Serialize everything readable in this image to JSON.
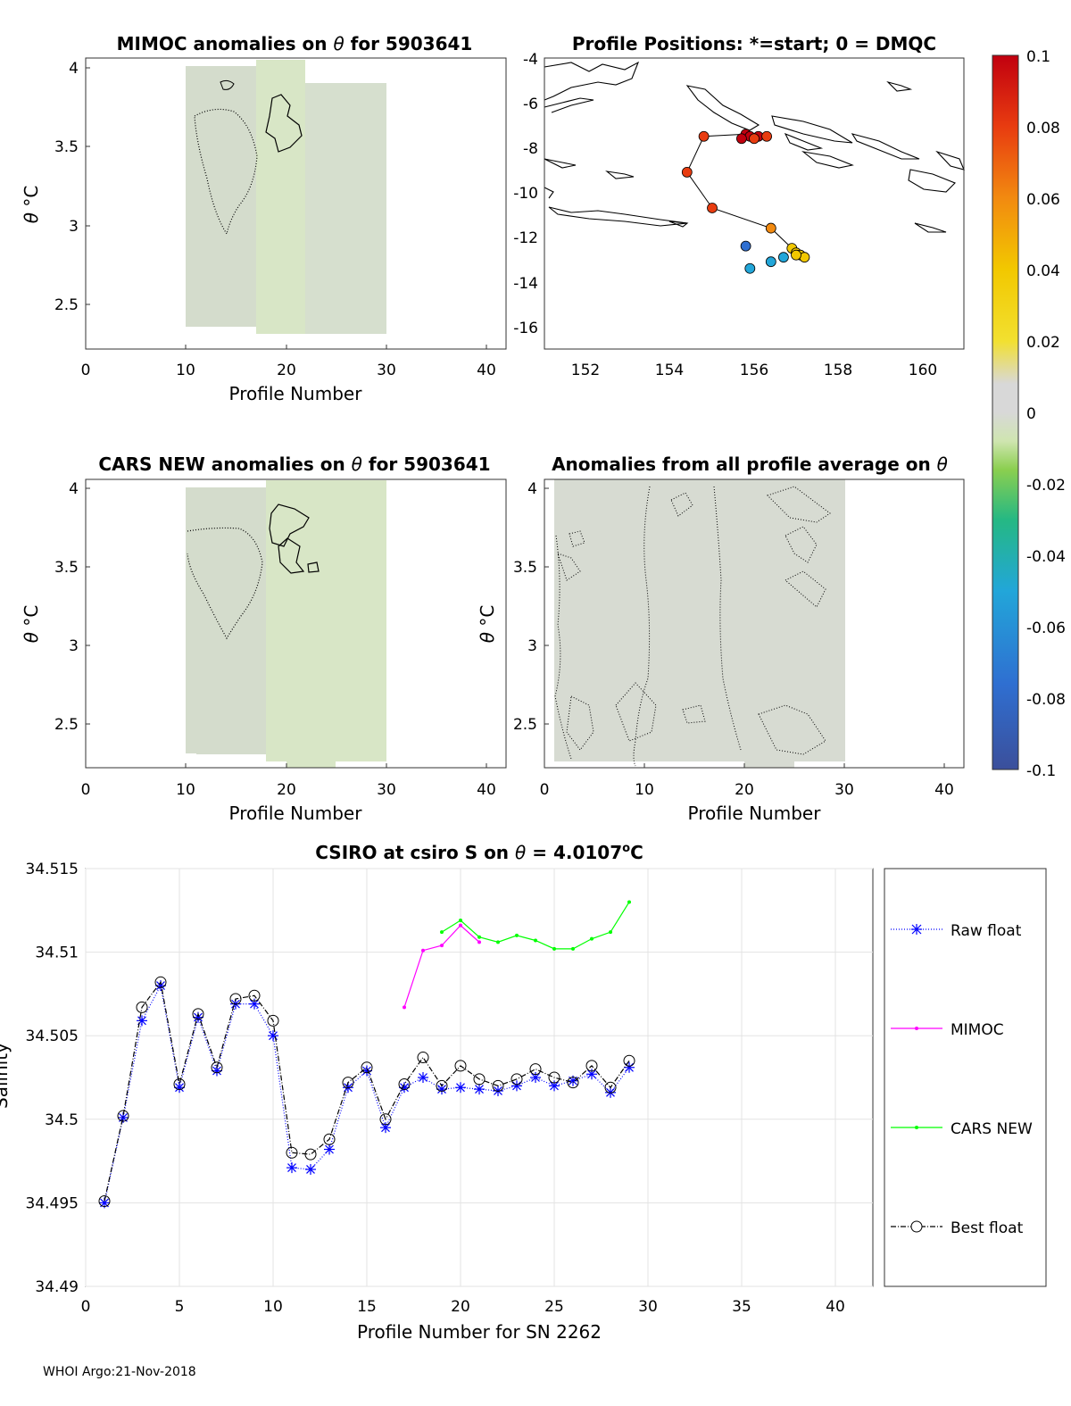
{
  "footer": "WHOI Argo:21-Nov-2018",
  "theta": "θ",
  "panels": {
    "mimoc": {
      "title_pre": "MIMOC anomalies on",
      "title_post": " for 5903641",
      "ylabel": "°C",
      "xlabel": "Profile Number",
      "xticks": [
        "0",
        "10",
        "20",
        "30",
        "40"
      ],
      "yticks": [
        "4",
        "3.5",
        "3",
        "2.5"
      ]
    },
    "positions": {
      "title": "Profile Positions: *=start; 0 = DMQC",
      "xticks": [
        "152",
        "154",
        "156",
        "158",
        "160"
      ],
      "yticks": [
        "-4",
        "-6",
        "-8",
        "-10",
        "-12",
        "-14",
        "-16"
      ]
    },
    "cars": {
      "title_pre": "CARS NEW anomalies on",
      "title_post": " for 5903641",
      "ylabel": "°C",
      "xlabel": "Profile Number",
      "xticks": [
        "0",
        "10",
        "20",
        "30",
        "40"
      ],
      "yticks": [
        "4",
        "3.5",
        "3",
        "2.5"
      ]
    },
    "allavg": {
      "title_pre": "Anomalies from all profile average on",
      "ylabel": "°C",
      "xlabel": "Profile Number",
      "xticks": [
        "0",
        "10",
        "20",
        "30",
        "40"
      ],
      "yticks": [
        "4",
        "3.5",
        "3",
        "2.5"
      ]
    }
  },
  "colorbar": {
    "ticks": [
      "0.1",
      "0.08",
      "0.06",
      "0.04",
      "0.02",
      "0",
      "-0.02",
      "-0.04",
      "-0.06",
      "-0.08",
      "-0.1"
    ]
  },
  "chart_data": [
    {
      "type": "line",
      "title_pre": "CSIRO at csiro S on",
      "title_post": " = 4.0107",
      "title_sup": "o",
      "title_unit": "C",
      "xlabel": "Profile Number for SN 2262",
      "ylabel": "Salinity",
      "xlim": [
        0,
        42
      ],
      "ylim": [
        34.49,
        34.515
      ],
      "xticks": [
        "0",
        "5",
        "10",
        "15",
        "20",
        "25",
        "30",
        "35",
        "40"
      ],
      "yticks": [
        "34.515",
        "34.51",
        "34.505",
        "34.5",
        "34.495",
        "34.49"
      ],
      "series": [
        {
          "name": "Raw float",
          "color": "#0000ff",
          "x": [
            1,
            2,
            3,
            4,
            5,
            6,
            7,
            8,
            9,
            10,
            11,
            12,
            13,
            14,
            15,
            16,
            17,
            18,
            19,
            20,
            21,
            22,
            23,
            24,
            25,
            26,
            27,
            28,
            29
          ],
          "values": [
            34.495,
            34.5001,
            34.5059,
            34.508,
            34.5019,
            34.5061,
            34.5029,
            34.5069,
            34.5069,
            34.505,
            34.4971,
            34.497,
            34.4982,
            34.5019,
            34.5029,
            34.4995,
            34.5019,
            34.5025,
            34.5018,
            34.5019,
            34.5018,
            34.5017,
            34.502,
            34.5025,
            34.502,
            34.5023,
            34.5027,
            34.5016,
            34.5031
          ]
        },
        {
          "name": "MIMOC",
          "color": "#ff00ff",
          "x": [
            17,
            18,
            19,
            20,
            21
          ],
          "values": [
            34.5067,
            34.5101,
            34.5104,
            34.5116,
            34.5106
          ]
        },
        {
          "name": "CARS NEW",
          "color": "#00ff00",
          "x": [
            19,
            20,
            21,
            22,
            23,
            24,
            25,
            26,
            27,
            28,
            29
          ],
          "values": [
            34.5112,
            34.5119,
            34.5109,
            34.5106,
            34.511,
            34.5107,
            34.5102,
            34.5102,
            34.5108,
            34.5112,
            34.513
          ]
        },
        {
          "name": "Best float",
          "color": "#000000",
          "x": [
            1,
            2,
            3,
            4,
            5,
            6,
            7,
            8,
            9,
            10,
            11,
            12,
            13,
            14,
            15,
            16,
            17,
            18,
            19,
            20,
            21,
            22,
            23,
            24,
            25,
            26,
            27,
            28,
            29
          ],
          "values": [
            34.4951,
            34.5002,
            34.5067,
            34.5082,
            34.5021,
            34.5063,
            34.5031,
            34.5072,
            34.5074,
            34.5059,
            34.498,
            34.4979,
            34.4988,
            34.5022,
            34.5031,
            34.5,
            34.5021,
            34.5037,
            34.502,
            34.5032,
            34.5024,
            34.502,
            34.5024,
            34.503,
            34.5025,
            34.5022,
            34.5032,
            34.5019,
            34.5035
          ]
        }
      ]
    },
    {
      "type": "scatter",
      "title": "Profile Positions: *=start; 0 = DMQC",
      "xlim": [
        151,
        161
      ],
      "ylim": [
        -17,
        -4
      ],
      "points": [
        {
          "lon": 155.8,
          "lat": -7.4,
          "c": 0.09
        },
        {
          "lon": 155.9,
          "lat": -7.5,
          "c": 0.088
        },
        {
          "lon": 155.7,
          "lat": -7.6,
          "c": 0.085
        },
        {
          "lon": 156.1,
          "lat": -7.5,
          "c": 0.083
        },
        {
          "lon": 156.0,
          "lat": -7.6,
          "c": 0.08
        },
        {
          "lon": 156.3,
          "lat": -7.5,
          "c": 0.078
        },
        {
          "lon": 154.8,
          "lat": -7.5,
          "c": 0.07
        },
        {
          "lon": 154.4,
          "lat": -9.1,
          "c": 0.066
        },
        {
          "lon": 155.0,
          "lat": -10.7,
          "c": 0.062
        },
        {
          "lon": 156.4,
          "lat": -11.6,
          "c": 0.058
        },
        {
          "lon": 156.9,
          "lat": -12.5,
          "c": 0.04
        },
        {
          "lon": 157.0,
          "lat": -12.7,
          "c": 0.037
        },
        {
          "lon": 157.1,
          "lat": -12.8,
          "c": 0.034
        },
        {
          "lon": 157.2,
          "lat": -12.9,
          "c": 0.032
        },
        {
          "lon": 157.0,
          "lat": -12.8,
          "c": 0.028
        },
        {
          "lon": 156.7,
          "lat": -12.9,
          "c": -0.05
        },
        {
          "lon": 156.4,
          "lat": -13.1,
          "c": -0.056
        },
        {
          "lon": 155.9,
          "lat": -13.4,
          "c": -0.06
        },
        {
          "lon": 155.8,
          "lat": -12.4,
          "c": -0.085
        }
      ],
      "track_lon": [
        155.8,
        154.8,
        154.4,
        155.0,
        156.4,
        156.9,
        157.0,
        157.2
      ],
      "track_lat": [
        -7.4,
        -7.5,
        -9.1,
        -10.7,
        -11.6,
        -12.5,
        -12.7,
        -12.9
      ]
    }
  ]
}
